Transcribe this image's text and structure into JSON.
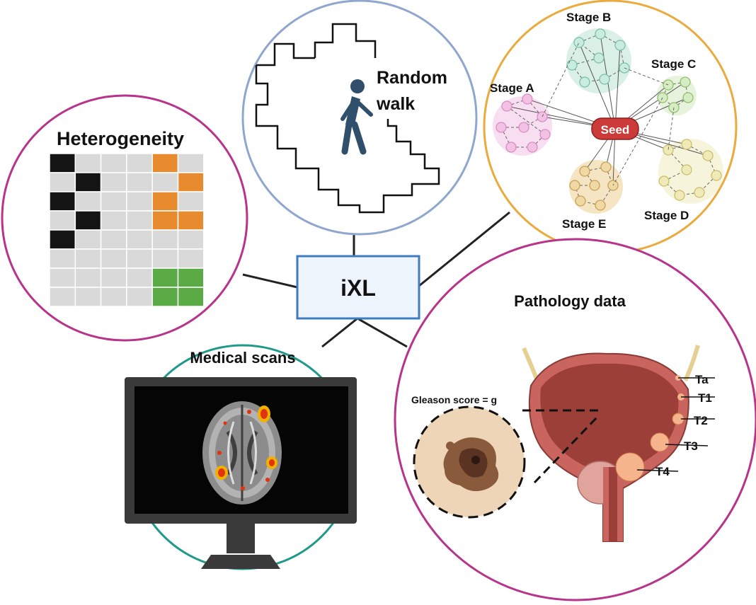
{
  "center": {
    "label": "iXL"
  },
  "heterogeneity": {
    "title": "Heterogeneity",
    "colors": {
      "black": "#141414",
      "orange": "#e88b2e",
      "green": "#5aab45",
      "empty": "#d9d9d9",
      "ring": "#b8338a"
    },
    "grid": [
      [
        "black",
        "empty",
        "empty",
        "empty",
        "orange",
        "empty"
      ],
      [
        "empty",
        "black",
        "empty",
        "empty",
        "empty",
        "orange"
      ],
      [
        "black",
        "empty",
        "empty",
        "empty",
        "orange",
        "empty"
      ],
      [
        "empty",
        "black",
        "empty",
        "empty",
        "orange",
        "orange"
      ],
      [
        "black",
        "empty",
        "empty",
        "empty",
        "empty",
        "empty"
      ],
      [
        "empty",
        "empty",
        "empty",
        "empty",
        "empty",
        "empty"
      ],
      [
        "empty",
        "empty",
        "empty",
        "empty",
        "green",
        "green"
      ],
      [
        "empty",
        "empty",
        "empty",
        "empty",
        "green",
        "green"
      ]
    ]
  },
  "random_walk": {
    "title_line1": "Random",
    "title_line2": "walk",
    "icon": "walking-person-icon",
    "colors": {
      "ring": "#8fa6cf",
      "person": "#2f4f6b"
    }
  },
  "stage_graph": {
    "seed_label": "Seed",
    "colors": {
      "ring": "#eaaa3c",
      "seed": "#cc3a3a"
    },
    "clusters": [
      {
        "label": "Stage A",
        "fill": "#f7d8ef",
        "node": "#f3c1e4",
        "stroke": "#d88ec4"
      },
      {
        "label": "Stage B",
        "fill": "#d3ede3",
        "node": "#c9ece0",
        "stroke": "#7bbfa6"
      },
      {
        "label": "Stage C",
        "fill": "#e3f1d6",
        "node": "#d6ecc3",
        "stroke": "#93bf70"
      },
      {
        "label": "Stage D",
        "fill": "#f5f2d4",
        "node": "#efeab6",
        "stroke": "#c9c072"
      },
      {
        "label": "Stage E",
        "fill": "#f3e1b8",
        "node": "#f0d9a3",
        "stroke": "#c9a05a"
      }
    ]
  },
  "medical_scans": {
    "title": "Medical scans",
    "icon": "monitor-brain-scan-icon",
    "colors": {
      "ring": "#1f9a8a",
      "monitor": "#3a3a3a",
      "screen": "#050505"
    }
  },
  "pathology": {
    "title": "Pathology data",
    "gleason_label": "Gleason score = g",
    "stages": [
      "Ta",
      "T1",
      "T2",
      "T3",
      "T4"
    ],
    "icon": "bladder-anatomy-icon",
    "colors": {
      "ring": "#b8338a",
      "tissue": "#c9645e",
      "lumen": "#9c3f38",
      "tumor": "#f6b48c"
    }
  }
}
